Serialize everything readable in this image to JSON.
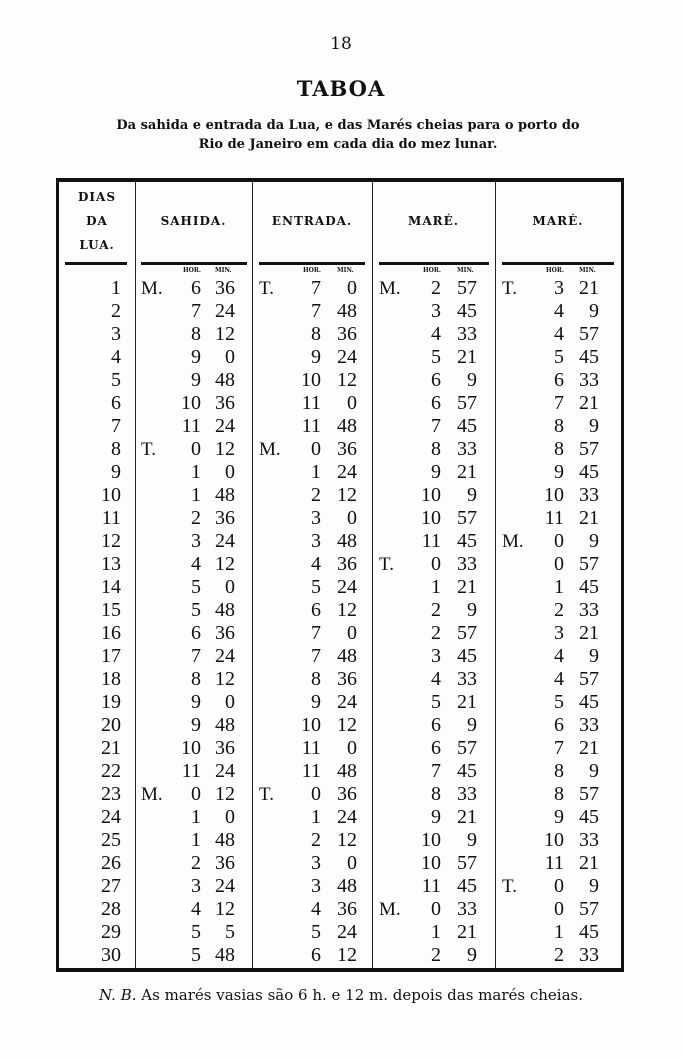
{
  "page_number": "18",
  "title": "TABOA",
  "subtitle_line1": "Da sahida e entrada da Lua, e das Marés cheias para o porto do",
  "subtitle_line2": "Rio de Janeiro em cada dia do mez lunar.",
  "table": {
    "headers": {
      "dias": "DIAS DA LUA.",
      "sahida": "SAHIDA.",
      "entrada": "ENTRADA.",
      "mare1": "MARÉ.",
      "mare2": "MARÉ."
    },
    "subheaders": {
      "hor": "HOR.",
      "min": "MIN."
    },
    "rows": [
      [
        "1",
        [
          "M.",
          "6",
          "36"
        ],
        [
          "T.",
          "7",
          "0"
        ],
        [
          "M.",
          "2",
          "57"
        ],
        [
          "T.",
          "3",
          "21"
        ]
      ],
      [
        "2",
        [
          "",
          "7",
          "24"
        ],
        [
          "",
          "7",
          "48"
        ],
        [
          "",
          "3",
          "45"
        ],
        [
          "",
          "4",
          "9"
        ]
      ],
      [
        "3",
        [
          "",
          "8",
          "12"
        ],
        [
          "",
          "8",
          "36"
        ],
        [
          "",
          "4",
          "33"
        ],
        [
          "",
          "4",
          "57"
        ]
      ],
      [
        "4",
        [
          "",
          "9",
          "0"
        ],
        [
          "",
          "9",
          "24"
        ],
        [
          "",
          "5",
          "21"
        ],
        [
          "",
          "5",
          "45"
        ]
      ],
      [
        "5",
        [
          "",
          "9",
          "48"
        ],
        [
          "",
          "10",
          "12"
        ],
        [
          "",
          "6",
          "9"
        ],
        [
          "",
          "6",
          "33"
        ]
      ],
      [
        "6",
        [
          "",
          "10",
          "36"
        ],
        [
          "",
          "11",
          "0"
        ],
        [
          "",
          "6",
          "57"
        ],
        [
          "",
          "7",
          "21"
        ]
      ],
      [
        "7",
        [
          "",
          "11",
          "24"
        ],
        [
          "",
          "11",
          "48"
        ],
        [
          "",
          "7",
          "45"
        ],
        [
          "",
          "8",
          "9"
        ]
      ],
      [
        "8",
        [
          "T.",
          "0",
          "12"
        ],
        [
          "M.",
          "0",
          "36"
        ],
        [
          "",
          "8",
          "33"
        ],
        [
          "",
          "8",
          "57"
        ]
      ],
      [
        "9",
        [
          "",
          "1",
          "0"
        ],
        [
          "",
          "1",
          "24"
        ],
        [
          "",
          "9",
          "21"
        ],
        [
          "",
          "9",
          "45"
        ]
      ],
      [
        "10",
        [
          "",
          "1",
          "48"
        ],
        [
          "",
          "2",
          "12"
        ],
        [
          "",
          "10",
          "9"
        ],
        [
          "",
          "10",
          "33"
        ]
      ],
      [
        "11",
        [
          "",
          "2",
          "36"
        ],
        [
          "",
          "3",
          "0"
        ],
        [
          "",
          "10",
          "57"
        ],
        [
          "",
          "11",
          "21"
        ]
      ],
      [
        "12",
        [
          "",
          "3",
          "24"
        ],
        [
          "",
          "3",
          "48"
        ],
        [
          "",
          "11",
          "45"
        ],
        [
          "M.",
          "0",
          "9"
        ]
      ],
      [
        "13",
        [
          "",
          "4",
          "12"
        ],
        [
          "",
          "4",
          "36"
        ],
        [
          "T.",
          "0",
          "33"
        ],
        [
          "",
          "0",
          "57"
        ]
      ],
      [
        "14",
        [
          "",
          "5",
          "0"
        ],
        [
          "",
          "5",
          "24"
        ],
        [
          "",
          "1",
          "21"
        ],
        [
          "",
          "1",
          "45"
        ]
      ],
      [
        "15",
        [
          "",
          "5",
          "48"
        ],
        [
          "",
          "6",
          "12"
        ],
        [
          "",
          "2",
          "9"
        ],
        [
          "",
          "2",
          "33"
        ]
      ],
      [
        "16",
        [
          "",
          "6",
          "36"
        ],
        [
          "",
          "7",
          "0"
        ],
        [
          "",
          "2",
          "57"
        ],
        [
          "",
          "3",
          "21"
        ]
      ],
      [
        "17",
        [
          "",
          "7",
          "24"
        ],
        [
          "",
          "7",
          "48"
        ],
        [
          "",
          "3",
          "45"
        ],
        [
          "",
          "4",
          "9"
        ]
      ],
      [
        "18",
        [
          "",
          "8",
          "12"
        ],
        [
          "",
          "8",
          "36"
        ],
        [
          "",
          "4",
          "33"
        ],
        [
          "",
          "4",
          "57"
        ]
      ],
      [
        "19",
        [
          "",
          "9",
          "0"
        ],
        [
          "",
          "9",
          "24"
        ],
        [
          "",
          "5",
          "21"
        ],
        [
          "",
          "5",
          "45"
        ]
      ],
      [
        "20",
        [
          "",
          "9",
          "48"
        ],
        [
          "",
          "10",
          "12"
        ],
        [
          "",
          "6",
          "9"
        ],
        [
          "",
          "6",
          "33"
        ]
      ],
      [
        "21",
        [
          "",
          "10",
          "36"
        ],
        [
          "",
          "11",
          "0"
        ],
        [
          "",
          "6",
          "57"
        ],
        [
          "",
          "7",
          "21"
        ]
      ],
      [
        "22",
        [
          "",
          "11",
          "24"
        ],
        [
          "",
          "11",
          "48"
        ],
        [
          "",
          "7",
          "45"
        ],
        [
          "",
          "8",
          "9"
        ]
      ],
      [
        "23",
        [
          "M.",
          "0",
          "12"
        ],
        [
          "T.",
          "0",
          "36"
        ],
        [
          "",
          "8",
          "33"
        ],
        [
          "",
          "8",
          "57"
        ]
      ],
      [
        "24",
        [
          "",
          "1",
          "0"
        ],
        [
          "",
          "1",
          "24"
        ],
        [
          "",
          "9",
          "21"
        ],
        [
          "",
          "9",
          "45"
        ]
      ],
      [
        "25",
        [
          "",
          "1",
          "48"
        ],
        [
          "",
          "2",
          "12"
        ],
        [
          "",
          "10",
          "9"
        ],
        [
          "",
          "10",
          "33"
        ]
      ],
      [
        "26",
        [
          "",
          "2",
          "36"
        ],
        [
          "",
          "3",
          "0"
        ],
        [
          "",
          "10",
          "57"
        ],
        [
          "",
          "11",
          "21"
        ]
      ],
      [
        "27",
        [
          "",
          "3",
          "24"
        ],
        [
          "",
          "3",
          "48"
        ],
        [
          "",
          "11",
          "45"
        ],
        [
          "T.",
          "0",
          "9"
        ]
      ],
      [
        "28",
        [
          "",
          "4",
          "12"
        ],
        [
          "",
          "4",
          "36"
        ],
        [
          "M.",
          "0",
          "33"
        ],
        [
          "",
          "0",
          "57"
        ]
      ],
      [
        "29",
        [
          "",
          "5",
          "5"
        ],
        [
          "",
          "5",
          "24"
        ],
        [
          "",
          "1",
          "21"
        ],
        [
          "",
          "1",
          "45"
        ]
      ],
      [
        "30",
        [
          "",
          "5",
          "48"
        ],
        [
          "",
          "6",
          "12"
        ],
        [
          "",
          "2",
          "9"
        ],
        [
          "",
          "2",
          "33"
        ]
      ]
    ]
  },
  "footnote": {
    "prefix": "N. B.",
    "text": "As marés vasias são 6 h. e 12 m. depois das marés cheias."
  }
}
